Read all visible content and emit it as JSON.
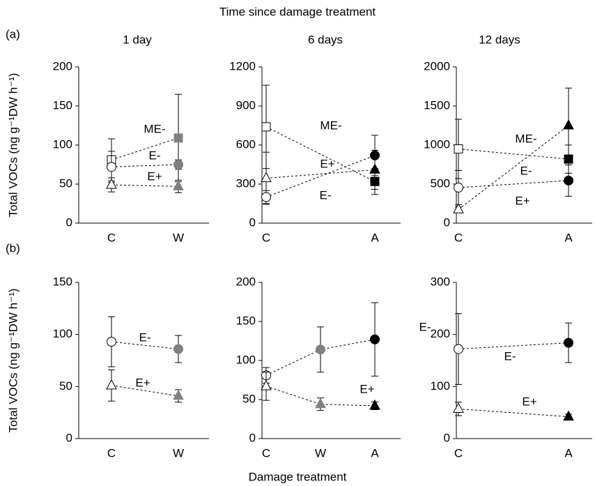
{
  "title": "Time since damage treatment",
  "x_label": "Damage treatment",
  "panels": [
    "(a)",
    "(b)"
  ],
  "chart_data": [
    {
      "type": "errorline",
      "title": "1 day",
      "y_label": "Total VOCs (ng g⁻¹DW h⁻¹)",
      "categories": [
        "C",
        "W"
      ],
      "ylim": [
        0,
        200
      ],
      "yticks": [
        0,
        50,
        100,
        150,
        200
      ],
      "series": [
        {
          "name": "ME-",
          "marker": "square",
          "fills": [
            "#ffffff",
            "#808080"
          ],
          "values": [
            81,
            109
          ],
          "errors": [
            27,
            56
          ]
        },
        {
          "name": "E-",
          "marker": "circle",
          "fills": [
            "#ffffff",
            "#808080"
          ],
          "values": [
            72,
            75
          ],
          "errors": [
            20,
            6
          ]
        },
        {
          "name": "E+",
          "marker": "triangle",
          "fills": [
            "#ffffff",
            "#808080"
          ],
          "values": [
            49,
            47
          ],
          "errors": [
            9,
            8
          ]
        }
      ]
    },
    {
      "type": "errorline",
      "title": "6 days",
      "categories": [
        "C",
        "A"
      ],
      "ylim": [
        0,
        1200
      ],
      "yticks": [
        0,
        300,
        600,
        900,
        1200
      ],
      "series": [
        {
          "name": "ME-",
          "marker": "square",
          "fills": [
            "#ffffff",
            "#000000"
          ],
          "values": [
            740,
            320
          ],
          "errors": [
            320,
            100
          ]
        },
        {
          "name": "E+",
          "marker": "triangle",
          "fills": [
            "#ffffff",
            "#000000"
          ],
          "values": [
            345,
            410
          ],
          "errors": [
            200,
            150
          ]
        },
        {
          "name": "E-",
          "marker": "circle",
          "fills": [
            "#ffffff",
            "#000000"
          ],
          "values": [
            200,
            520
          ],
          "errors": [
            50,
            155
          ]
        }
      ]
    },
    {
      "type": "errorline",
      "title": "12 days",
      "categories": [
        "C",
        "A"
      ],
      "ylim": [
        0,
        2000
      ],
      "yticks": [
        0,
        500,
        1000,
        1500,
        2000
      ],
      "series": [
        {
          "name": "ME-",
          "marker": "square",
          "fills": [
            "#ffffff",
            "#000000"
          ],
          "values": [
            950,
            820
          ],
          "errors": [
            380,
            180
          ]
        },
        {
          "name": "E-",
          "marker": "circle",
          "fills": [
            "#ffffff",
            "#000000"
          ],
          "values": [
            455,
            545
          ],
          "errors": [
            220,
            200
          ]
        },
        {
          "name": "E+",
          "marker": "triangle",
          "fills": [
            "#ffffff",
            "#000000"
          ],
          "values": [
            175,
            1250
          ],
          "errors": [
            30,
            480
          ]
        }
      ]
    },
    {
      "type": "errorline",
      "y_label": "Total VOCs (ng g⁻¹DW h⁻¹)",
      "categories": [
        "C",
        "W"
      ],
      "ylim": [
        0,
        150
      ],
      "yticks": [
        0,
        50,
        100,
        150
      ],
      "series": [
        {
          "name": "E-",
          "marker": "circle",
          "fills": [
            "#ffffff",
            "#808080"
          ],
          "values": [
            93,
            86
          ],
          "errors": [
            24,
            13
          ]
        },
        {
          "name": "E+",
          "marker": "triangle",
          "fills": [
            "#ffffff",
            "#808080"
          ],
          "values": [
            51,
            41
          ],
          "errors": [
            15,
            6
          ]
        }
      ]
    },
    {
      "type": "errorline",
      "categories": [
        "C",
        "W",
        "A"
      ],
      "ylim": [
        0,
        200
      ],
      "yticks": [
        0,
        50,
        100,
        150,
        200
      ],
      "series": [
        {
          "name": "E-",
          "marker": "circle",
          "fills": [
            "#ffffff",
            "#808080",
            "#000000"
          ],
          "values": [
            81,
            114,
            127
          ],
          "errors": [
            10,
            29,
            47
          ]
        },
        {
          "name": "E+",
          "marker": "triangle",
          "fills": [
            "#ffffff",
            "#808080",
            "#000000"
          ],
          "values": [
            67,
            44,
            42
          ],
          "errors": [
            18,
            8,
            5
          ]
        }
      ]
    },
    {
      "type": "errorline",
      "categories": [
        "C",
        "A"
      ],
      "ylim": [
        0,
        300
      ],
      "yticks": [
        0,
        100,
        200,
        300
      ],
      "series": [
        {
          "name": "E-",
          "marker": "circle",
          "fills": [
            "#ffffff",
            "#000000"
          ],
          "values": [
            172,
            184
          ],
          "errors": [
            68,
            38
          ]
        },
        {
          "name": "E+",
          "marker": "triangle",
          "fills": [
            "#ffffff",
            "#000000"
          ],
          "values": [
            57,
            42
          ],
          "errors": [
            13,
            5
          ]
        }
      ]
    }
  ]
}
